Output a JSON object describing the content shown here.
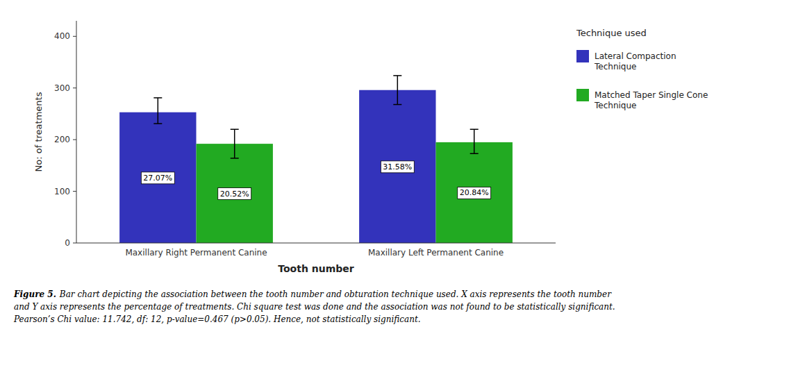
{
  "chart_data": {
    "type": "bar",
    "categories": [
      "Maxillary Right Permanent Canine",
      "Maxillary Left Permanent Canine"
    ],
    "series": [
      {
        "name": "Lateral Compaction\nTechnique",
        "color": "#3333bb",
        "values": [
          253,
          296
        ],
        "errors_lower": [
          22,
          28
        ],
        "errors_upper": [
          28,
          28
        ],
        "percentages": [
          "27.07%",
          "31.58%"
        ]
      },
      {
        "name": "Matched Taper Single Cone\nTechnique",
        "color": "#22aa22",
        "values": [
          192,
          195
        ],
        "errors_lower": [
          28,
          22
        ],
        "errors_upper": [
          28,
          25
        ],
        "percentages": [
          "20.52%",
          "20.84%"
        ]
      }
    ],
    "y_label": "No: of treatments",
    "x_label": "Tooth number",
    "legend_title": "Technique used",
    "legend": "right",
    "ylim": [
      0,
      430
    ],
    "yticks": [
      0,
      100,
      200,
      300,
      400
    ],
    "grid": false,
    "caption_bold": "Figure 5.",
    "caption": "Bar chart depicting the association between the tooth number and obturation technique used. X axis represents the tooth number\nand Y axis represents the percentage of treatments. Chi square test was done and the association was not found to be statistically significant.\nPearson’s Chi value: 11.742, df: 12, p-value=0.467 (p>0.05). Hence, not statistically significant."
  }
}
